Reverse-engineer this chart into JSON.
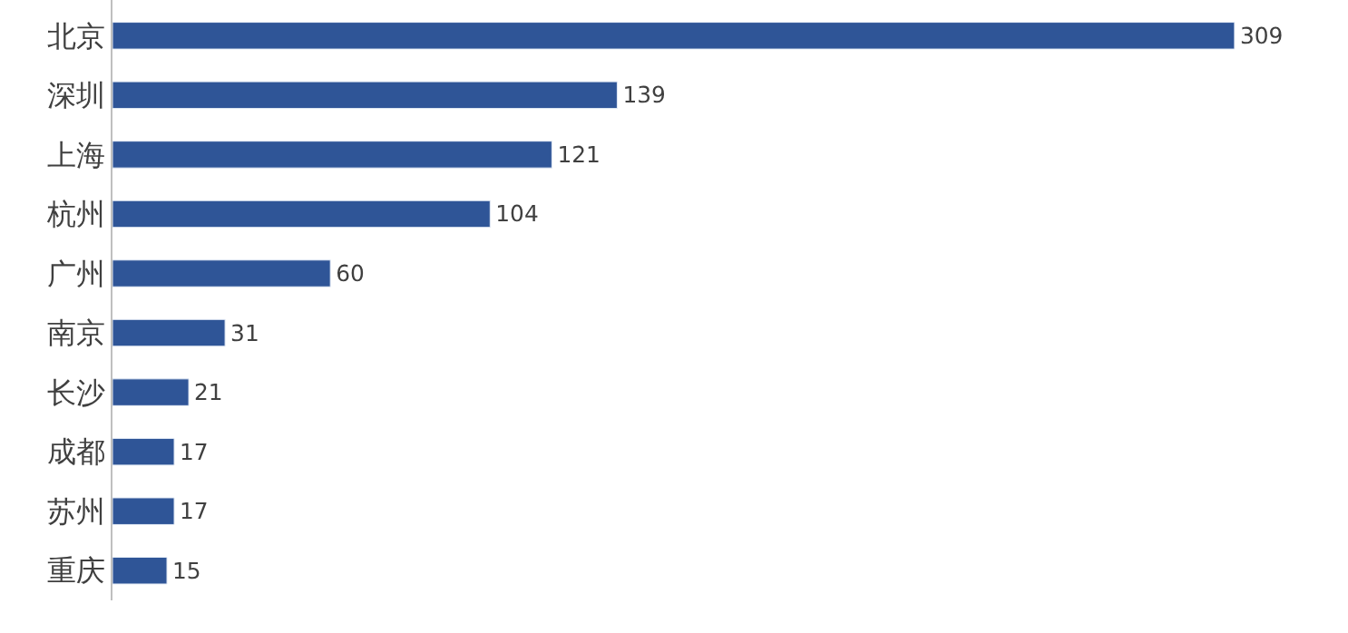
{
  "chart_data": {
    "type": "bar",
    "orientation": "horizontal",
    "categories": [
      "北京",
      "深圳",
      "上海",
      "杭州",
      "广州",
      "南京",
      "长沙",
      "成都",
      "苏州",
      "重庆"
    ],
    "values": [
      309,
      139,
      121,
      104,
      60,
      31,
      21,
      17,
      17,
      15
    ],
    "color": "#2f5597",
    "data_labels": true,
    "tick_labels": "y"
  }
}
